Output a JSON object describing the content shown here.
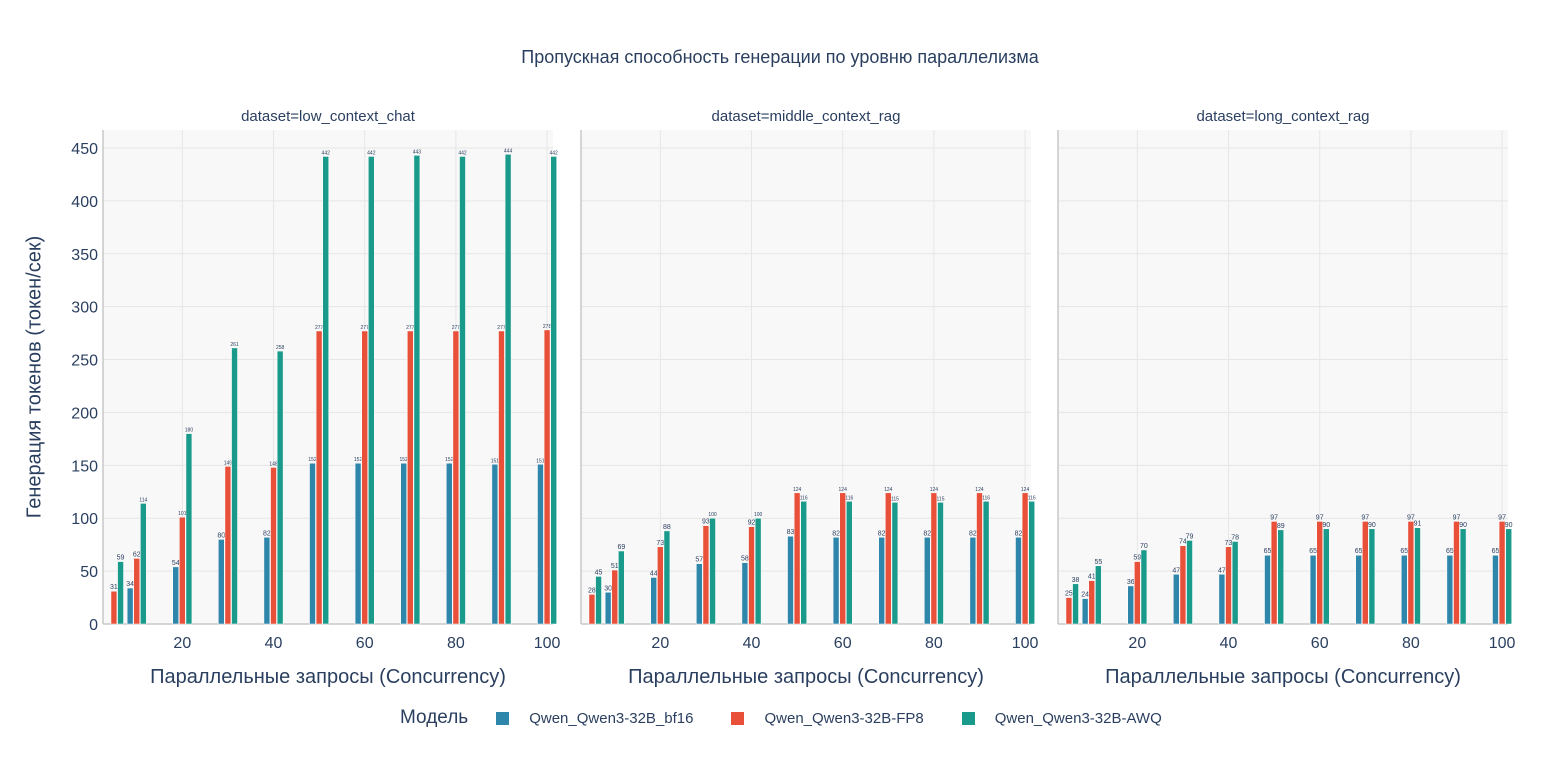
{
  "chart_data": {
    "type": "bar",
    "title": "Пропускная способность генерации по уровню параллелизма",
    "xlabel": "Параллельные запросы (Concurrency)",
    "ylabel": "Генерация токенов (токен/сек)",
    "ylim": [
      0,
      467
    ],
    "xlim": [
      2.6,
      101.3
    ],
    "yticks": [
      0,
      50,
      100,
      150,
      200,
      250,
      300,
      350,
      400,
      450
    ],
    "xticks": [
      20,
      40,
      60,
      80,
      100
    ],
    "grid": true,
    "legend": {
      "title": "Модель",
      "placement": "bottom"
    },
    "x": [
      5,
      10,
      20,
      30,
      40,
      50,
      60,
      70,
      80,
      90,
      100
    ],
    "series_meta": [
      {
        "name": "Qwen_Qwen3-32B_bf16",
        "color": "#2e86ab"
      },
      {
        "name": "Qwen_Qwen3-32B-FP8",
        "color": "#e8503a"
      },
      {
        "name": "Qwen_Qwen3-32B-AWQ",
        "color": "#1a9a8a"
      }
    ],
    "facets": [
      {
        "title": "dataset=low_context_chat",
        "series": [
          {
            "name": "Qwen_Qwen3-32B_bf16",
            "values": [
              null,
              34,
              54,
              80,
              82,
              152,
              152,
              152,
              152,
              151,
              151
            ]
          },
          {
            "name": "Qwen_Qwen3-32B-FP8",
            "values": [
              31,
              62,
              101,
              149,
              148,
              277,
              277,
              277,
              277,
              277,
              278
            ]
          },
          {
            "name": "Qwen_Qwen3-32B-AWQ",
            "values": [
              59,
              114,
              180,
              261,
              258,
              442,
              442,
              443,
              442,
              444,
              442
            ]
          }
        ]
      },
      {
        "title": "dataset=middle_context_rag",
        "series": [
          {
            "name": "Qwen_Qwen3-32B_bf16",
            "values": [
              null,
              30,
              44,
              57,
              58,
              83,
              82,
              82,
              82,
              82,
              82
            ]
          },
          {
            "name": "Qwen_Qwen3-32B-FP8",
            "values": [
              28,
              51,
              73,
              93,
              92,
              124,
              124,
              124,
              124,
              124,
              124
            ]
          },
          {
            "name": "Qwen_Qwen3-32B-AWQ",
            "values": [
              45,
              69,
              88,
              100,
              100,
              116,
              116,
              115,
              115,
              116,
              116
            ]
          }
        ]
      },
      {
        "title": "dataset=long_context_rag",
        "series": [
          {
            "name": "Qwen_Qwen3-32B_bf16",
            "values": [
              null,
              24,
              36,
              47,
              47,
              65,
              65,
              65,
              65,
              65,
              65
            ]
          },
          {
            "name": "Qwen_Qwen3-32B-FP8",
            "values": [
              25,
              41,
              59,
              74,
              73,
              97,
              97,
              97,
              97,
              97,
              97
            ]
          },
          {
            "name": "Qwen_Qwen3-32B-AWQ",
            "values": [
              38,
              55,
              70,
              79,
              78,
              89,
              90,
              90,
              91,
              90,
              90
            ]
          }
        ]
      }
    ]
  }
}
